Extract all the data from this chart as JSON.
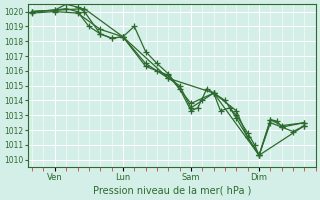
{
  "title": "",
  "xlabel": "Pression niveau de la mer( hPa )",
  "ylabel": "",
  "bg_color": "#d4eee8",
  "grid_color": "#ffffff",
  "line_color": "#2d6a2d",
  "ylim": [
    1009.5,
    1020.5
  ],
  "yticks": [
    1010,
    1011,
    1012,
    1013,
    1014,
    1015,
    1016,
    1017,
    1018,
    1019,
    1020
  ],
  "day_labels": [
    "Ven",
    "Lun",
    "Sam",
    "Dim"
  ],
  "day_positions": [
    1,
    4,
    7,
    10
  ],
  "series": [
    [
      [
        0,
        1020.0
      ],
      [
        1,
        1020.1
      ],
      [
        1.5,
        1020.5
      ],
      [
        2,
        1020.3
      ],
      [
        2.3,
        1020.0
      ],
      [
        3,
        1018.5
      ],
      [
        3.5,
        1018.2
      ],
      [
        4,
        1018.3
      ],
      [
        4.5,
        1019.0
      ],
      [
        5,
        1017.3
      ],
      [
        5.5,
        1016.5
      ],
      [
        6,
        1015.8
      ],
      [
        6.5,
        1014.8
      ],
      [
        7,
        1013.3
      ],
      [
        7.3,
        1013.5
      ],
      [
        7.7,
        1014.8
      ],
      [
        8,
        1014.5
      ],
      [
        8.3,
        1013.3
      ],
      [
        8.7,
        1013.5
      ],
      [
        9,
        1013.0
      ],
      [
        9.5,
        1011.8
      ],
      [
        9.8,
        1011.0
      ],
      [
        10,
        1010.3
      ],
      [
        10.5,
        1012.7
      ],
      [
        10.8,
        1012.6
      ],
      [
        11,
        1012.2
      ],
      [
        11.5,
        1011.9
      ],
      [
        12,
        1012.3
      ]
    ],
    [
      [
        0,
        1020.0
      ],
      [
        1,
        1020.1
      ],
      [
        1.5,
        1020.2
      ],
      [
        2,
        1020.0
      ],
      [
        2.5,
        1019.0
      ],
      [
        3,
        1018.5
      ],
      [
        3.5,
        1018.2
      ],
      [
        4,
        1018.3
      ],
      [
        5,
        1016.5
      ],
      [
        5.5,
        1016.0
      ],
      [
        6,
        1015.5
      ],
      [
        6.5,
        1015.0
      ],
      [
        7,
        1013.5
      ],
      [
        7.5,
        1014.0
      ],
      [
        8,
        1014.5
      ],
      [
        8.5,
        1014.0
      ],
      [
        9,
        1012.8
      ],
      [
        9.5,
        1011.5
      ],
      [
        10,
        1010.3
      ],
      [
        10.5,
        1012.7
      ],
      [
        11,
        1012.3
      ],
      [
        12,
        1012.5
      ]
    ],
    [
      [
        0,
        1019.9
      ],
      [
        1,
        1020.0
      ],
      [
        2,
        1019.9
      ],
      [
        3,
        1018.8
      ],
      [
        4,
        1018.3
      ],
      [
        5,
        1016.3
      ],
      [
        6,
        1015.7
      ],
      [
        7,
        1013.8
      ],
      [
        8,
        1014.5
      ],
      [
        9,
        1013.3
      ],
      [
        9.5,
        1011.5
      ],
      [
        10,
        1010.3
      ],
      [
        10.5,
        1012.5
      ],
      [
        11,
        1012.2
      ],
      [
        12,
        1012.5
      ]
    ],
    [
      [
        0,
        1020.0
      ],
      [
        2.3,
        1020.2
      ],
      [
        4,
        1018.3
      ],
      [
        6,
        1015.5
      ],
      [
        8,
        1014.5
      ],
      [
        10,
        1010.3
      ],
      [
        12,
        1012.3
      ]
    ]
  ]
}
